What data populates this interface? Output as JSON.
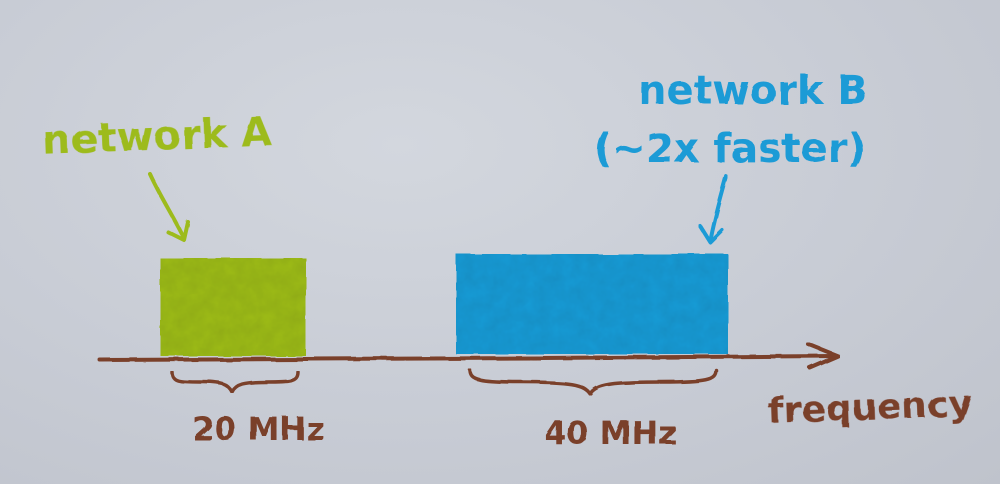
{
  "network_a": {
    "label": "network A",
    "bandwidth": "20 MHz",
    "color": "#9dbb1f"
  },
  "network_b": {
    "label_line1": "network B",
    "label_line2": "(~2x faster)",
    "bandwidth": "40 MHz",
    "color": "#1f9bd6"
  },
  "axis": {
    "label": "frequency",
    "color": "#7a3f2a"
  }
}
